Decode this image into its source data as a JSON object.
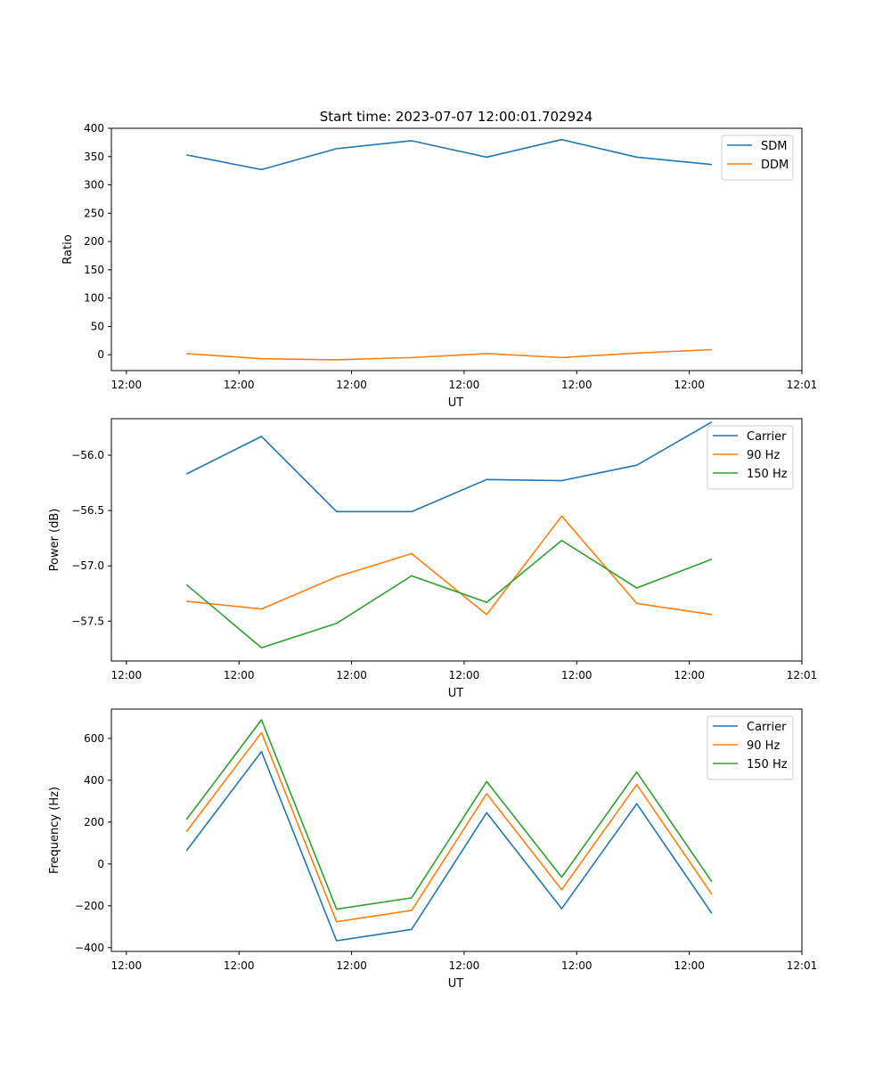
{
  "figure_title": "Start time: 2023-07-07 12:00:01.702924",
  "colors": {
    "blue": "#1f77b4",
    "orange": "#ff7f0e",
    "green": "#2ca02c"
  },
  "chart_data": [
    {
      "type": "line",
      "title": "Start time: 2023-07-07 12:00:01.702924",
      "xlabel": "UT",
      "ylabel": "Ratio",
      "x": [
        0.5,
        1.0,
        1.5,
        2.0,
        2.5,
        3.0,
        3.5,
        4.0
      ],
      "xlim": [
        0,
        4.6
      ],
      "xticks": [
        0.1,
        0.85,
        1.6,
        2.35,
        3.1,
        3.85,
        4.6
      ],
      "xtick_labels": [
        "12:00",
        "12:00",
        "12:00",
        "12:00",
        "12:00",
        "12:00",
        "12:01"
      ],
      "ylim": [
        -28,
        400
      ],
      "yticks": [
        0,
        50,
        100,
        150,
        200,
        250,
        300,
        350,
        400
      ],
      "ytick_labels": [
        "0",
        "50",
        "100",
        "150",
        "200",
        "250",
        "300",
        "350",
        "400"
      ],
      "grid": false,
      "legend": "top-right",
      "series": [
        {
          "name": "SDM",
          "color": "#1f77b4",
          "values": [
            353,
            327,
            364,
            378,
            349,
            380,
            349,
            336
          ]
        },
        {
          "name": "DDM",
          "color": "#ff7f0e",
          "values": [
            2,
            -7,
            -9,
            -5,
            2,
            -5,
            3,
            9
          ]
        }
      ]
    },
    {
      "type": "line",
      "title": "",
      "xlabel": "UT",
      "ylabel": "Power (dB)",
      "x": [
        0.5,
        1.0,
        1.5,
        2.0,
        2.5,
        3.0,
        3.5,
        4.0
      ],
      "xlim": [
        0,
        4.6
      ],
      "xticks": [
        0.1,
        0.85,
        1.6,
        2.35,
        3.1,
        3.85,
        4.6
      ],
      "xtick_labels": [
        "12:00",
        "12:00",
        "12:00",
        "12:00",
        "12:00",
        "12:00",
        "12:01"
      ],
      "ylim": [
        -57.86,
        -55.67
      ],
      "yticks": [
        -56.0,
        -56.5,
        -57.0,
        -57.5
      ],
      "ytick_labels": [
        "−56.0",
        "−56.5",
        "−57.0",
        "−57.5"
      ],
      "grid": false,
      "legend": "top-right",
      "series": [
        {
          "name": "Carrier",
          "color": "#1f77b4",
          "values": [
            -56.17,
            -55.83,
            -56.51,
            -56.51,
            -56.22,
            -56.23,
            -56.09,
            -55.7
          ]
        },
        {
          "name": "90 Hz",
          "color": "#ff7f0e",
          "values": [
            -57.32,
            -57.39,
            -57.1,
            -56.89,
            -57.44,
            -56.55,
            -57.34,
            -57.44
          ]
        },
        {
          "name": "150 Hz",
          "color": "#2ca02c",
          "values": [
            -57.17,
            -57.74,
            -57.52,
            -57.09,
            -57.33,
            -56.77,
            -57.2,
            -56.94
          ]
        }
      ]
    },
    {
      "type": "line",
      "title": "",
      "xlabel": "UT",
      "ylabel": "Frequency (Hz)",
      "x": [
        0.5,
        1.0,
        1.5,
        2.0,
        2.5,
        3.0,
        3.5,
        4.0
      ],
      "xlim": [
        0,
        4.6
      ],
      "xticks": [
        0.1,
        0.85,
        1.6,
        2.35,
        3.1,
        3.85,
        4.6
      ],
      "xtick_labels": [
        "12:00",
        "12:00",
        "12:00",
        "12:00",
        "12:00",
        "12:00",
        "12:01"
      ],
      "ylim": [
        -418,
        740
      ],
      "yticks": [
        600,
        400,
        200,
        0,
        -200,
        -400
      ],
      "ytick_labels": [
        "600",
        "400",
        "200",
        "0",
        "−200",
        "−400"
      ],
      "grid": false,
      "legend": "top-right",
      "series": [
        {
          "name": "Carrier",
          "color": "#1f77b4",
          "values": [
            63,
            537,
            -367,
            -313,
            245,
            -214,
            288,
            -236
          ]
        },
        {
          "name": "90 Hz",
          "color": "#ff7f0e",
          "values": [
            154,
            628,
            -276,
            -222,
            336,
            -123,
            379,
            -145
          ]
        },
        {
          "name": "150 Hz",
          "color": "#2ca02c",
          "values": [
            212,
            689,
            -216,
            -162,
            394,
            -63,
            439,
            -85
          ]
        }
      ]
    }
  ]
}
